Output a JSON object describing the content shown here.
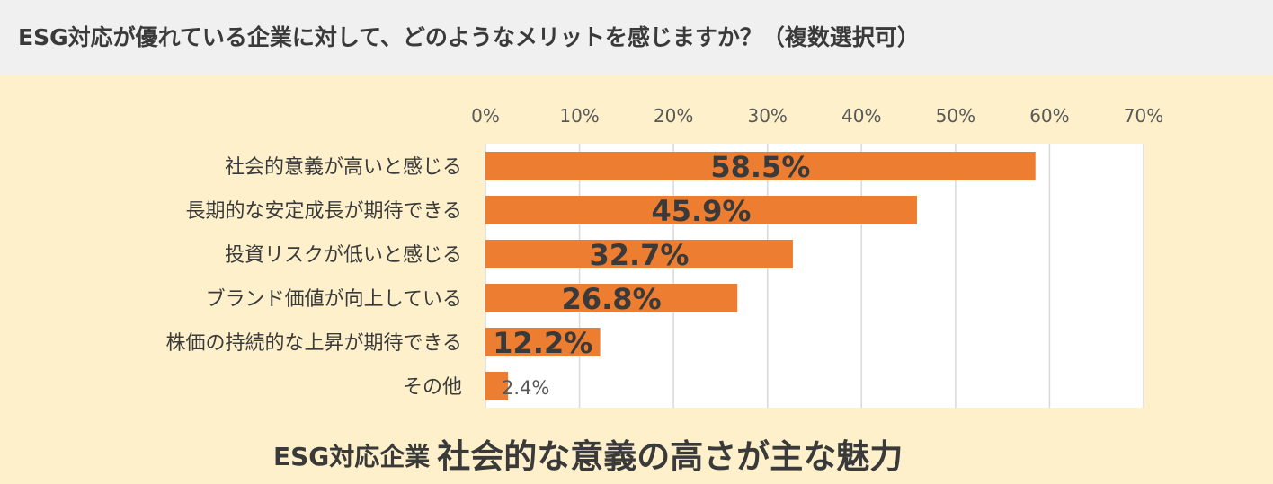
{
  "header": {
    "title": "ESG対応が優れている企業に対して、どのようなメリットを感じますか？（複数選択可）"
  },
  "footer": {
    "caption_small": "ESG対応企業",
    "caption_large": "社会的な意義の高さが主な魅力"
  },
  "colors": {
    "bar": "#ED7D31",
    "plot_background": "#FFFFFF",
    "page_background": "#FDF0CB",
    "header_background": "#F0F0F0",
    "grid": "#D9D9D9",
    "text": "#3A3A3A"
  },
  "chart_data": {
    "type": "bar",
    "orientation": "horizontal",
    "categories": [
      "社会的意義が高いと感じる",
      "長期的な安定成長が期待できる",
      "投資リスクが低いと感じる",
      "ブランド価値が向上している",
      "株価の持続的な上昇が期待できる",
      "その他"
    ],
    "values": [
      58.5,
      45.9,
      32.7,
      26.8,
      12.2,
      2.4
    ],
    "data_labels": [
      "58.5%",
      "45.9%",
      "32.7%",
      "26.8%",
      "12.2%",
      "2.4%"
    ],
    "xlim": [
      0,
      70
    ],
    "x_ticks": [
      "0%",
      "10%",
      "20%",
      "30%",
      "40%",
      "50%",
      "60%",
      "70%"
    ],
    "axis_position": "top",
    "grid": true,
    "legend": "none"
  }
}
